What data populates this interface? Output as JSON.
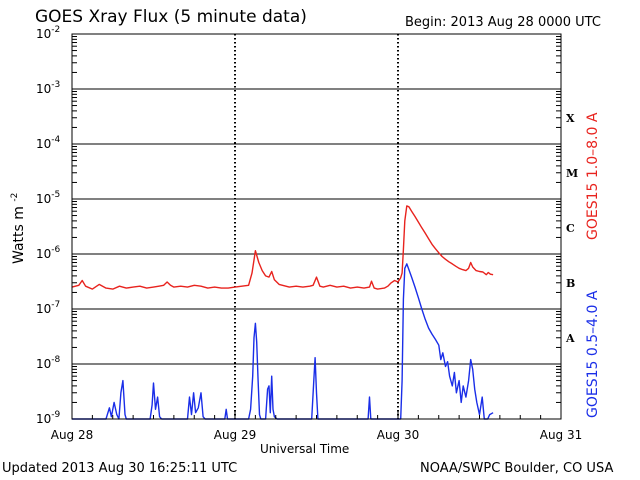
{
  "header": {
    "title": "GOES Xray Flux (5 minute data)",
    "begin": "Begin:  2013 Aug 28 0000 UTC"
  },
  "footer": {
    "updated": "Updated 2013 Aug 30 16:25:11 UTC",
    "credit": "NOAA/SWPC Boulder, CO USA"
  },
  "chart_data": {
    "type": "line",
    "title": "GOES Xray Flux (5 minute data)",
    "xlabel": "Universal Time",
    "ylabel": "Watts m",
    "ylabel_sup": "-2",
    "ylim": [
      1e-09,
      0.01
    ],
    "yscale": "log",
    "y_ticks": [
      {
        "base": "10",
        "exp": "-9",
        "value": 1e-09
      },
      {
        "base": "10",
        "exp": "-8",
        "value": 1e-08
      },
      {
        "base": "10",
        "exp": "-7",
        "value": 1e-07
      },
      {
        "base": "10",
        "exp": "-6",
        "value": 1e-06
      },
      {
        "base": "10",
        "exp": "-5",
        "value": 1e-05
      },
      {
        "base": "10",
        "exp": "-4",
        "value": 0.0001
      },
      {
        "base": "10",
        "exp": "-3",
        "value": 0.001
      },
      {
        "base": "10",
        "exp": "-2",
        "value": 0.01
      }
    ],
    "xlim": [
      0,
      72
    ],
    "x_unit": "hours since 2013 Aug 28 0000 UTC",
    "x_ticks": [
      {
        "label": "Aug 28",
        "value": 0
      },
      {
        "label": "Aug 29",
        "value": 24
      },
      {
        "label": "Aug 30",
        "value": 48
      },
      {
        "label": "Aug 31",
        "value": 72
      }
    ],
    "flare_classes": [
      {
        "label": "A",
        "value": 3e-08
      },
      {
        "label": "B",
        "value": 3e-07
      },
      {
        "label": "C",
        "value": 3e-06
      },
      {
        "label": "M",
        "value": 3e-05
      },
      {
        "label": "X",
        "value": 0.0003
      }
    ],
    "grid": true,
    "series": [
      {
        "name": "GOES15 1.0–8.0 A",
        "color": "#e8231e",
        "points": [
          [
            0,
            2.5e-07
          ],
          [
            1,
            2.7e-07
          ],
          [
            1.5,
            3.3e-07
          ],
          [
            2,
            2.6e-07
          ],
          [
            3,
            2.3e-07
          ],
          [
            4,
            2.8e-07
          ],
          [
            5,
            2.4e-07
          ],
          [
            6,
            2.3e-07
          ],
          [
            7,
            2.6e-07
          ],
          [
            8,
            2.4e-07
          ],
          [
            9,
            2.5e-07
          ],
          [
            10,
            2.6e-07
          ],
          [
            11,
            2.4e-07
          ],
          [
            12,
            2.5e-07
          ],
          [
            12.8,
            2.6e-07
          ],
          [
            13.5,
            2.7e-07
          ],
          [
            14,
            3.1e-07
          ],
          [
            14.5,
            2.7e-07
          ],
          [
            15,
            2.5e-07
          ],
          [
            16,
            2.6e-07
          ],
          [
            17,
            2.5e-07
          ],
          [
            18,
            2.7e-07
          ],
          [
            19,
            2.6e-07
          ],
          [
            20,
            2.4e-07
          ],
          [
            21,
            2.5e-07
          ],
          [
            22,
            2.4e-07
          ],
          [
            23,
            2.4e-07
          ],
          [
            24,
            2.5e-07
          ],
          [
            25,
            2.6e-07
          ],
          [
            26,
            2.7e-07
          ],
          [
            26.5,
            4.5e-07
          ],
          [
            27,
            1.15e-06
          ],
          [
            27.5,
            7e-07
          ],
          [
            28,
            5e-07
          ],
          [
            28.5,
            4e-07
          ],
          [
            29,
            3.8e-07
          ],
          [
            29.4,
            4.8e-07
          ],
          [
            29.8,
            3.4e-07
          ],
          [
            30.5,
            2.8e-07
          ],
          [
            31.5,
            2.6e-07
          ],
          [
            32,
            2.5e-07
          ],
          [
            33,
            2.6e-07
          ],
          [
            34,
            2.5e-07
          ],
          [
            35,
            2.6e-07
          ],
          [
            35.5,
            2.7e-07
          ],
          [
            36,
            3.8e-07
          ],
          [
            36.5,
            2.6e-07
          ],
          [
            37,
            2.5e-07
          ],
          [
            38,
            2.7e-07
          ],
          [
            39,
            2.5e-07
          ],
          [
            40,
            2.6e-07
          ],
          [
            41,
            2.4e-07
          ],
          [
            42,
            2.5e-07
          ],
          [
            43,
            2.4e-07
          ],
          [
            43.8,
            2.5e-07
          ],
          [
            44.1,
            3.2e-07
          ],
          [
            44.5,
            2.4e-07
          ],
          [
            45,
            2.3e-07
          ],
          [
            46,
            2.4e-07
          ],
          [
            46.5,
            2.6e-07
          ],
          [
            47,
            3e-07
          ],
          [
            47.5,
            3.3e-07
          ],
          [
            48,
            3.1e-07
          ],
          [
            48.4,
            3.7e-07
          ],
          [
            48.6,
            4.5e-07
          ],
          [
            48.8,
            1.2e-06
          ],
          [
            49,
            4e-06
          ],
          [
            49.3,
            7.5e-06
          ],
          [
            49.6,
            7.2e-06
          ],
          [
            50,
            6e-06
          ],
          [
            50.5,
            4.8e-06
          ],
          [
            51,
            3.8e-06
          ],
          [
            51.5,
            3e-06
          ],
          [
            52,
            2.4e-06
          ],
          [
            52.5,
            1.9e-06
          ],
          [
            53,
            1.5e-06
          ],
          [
            53.5,
            1.25e-06
          ],
          [
            54,
            1.05e-06
          ],
          [
            54.5,
            9e-07
          ],
          [
            55,
            8e-07
          ],
          [
            55.5,
            7.2e-07
          ],
          [
            56,
            6.6e-07
          ],
          [
            56.5,
            6e-07
          ],
          [
            57,
            5.5e-07
          ],
          [
            57.5,
            5.2e-07
          ],
          [
            58,
            5e-07
          ],
          [
            58.4,
            5.5e-07
          ],
          [
            58.7,
            7e-07
          ],
          [
            59,
            5.8e-07
          ],
          [
            59.5,
            5e-07
          ],
          [
            60,
            4.8e-07
          ],
          [
            60.5,
            4.7e-07
          ],
          [
            61,
            4.2e-07
          ],
          [
            61.3,
            4.6e-07
          ],
          [
            61.6,
            4.3e-07
          ],
          [
            62,
            4.2e-07
          ]
        ]
      },
      {
        "name": "GOES15 0.5–4.0 A",
        "color": "#1a2ee8",
        "points": [
          [
            0,
            1e-09
          ],
          [
            5,
            1e-09
          ],
          [
            5.5,
            1.6e-09
          ],
          [
            5.8,
            1.1e-09
          ],
          [
            6.2,
            2e-09
          ],
          [
            6.6,
            1.2e-09
          ],
          [
            6.9,
            1e-09
          ],
          [
            7.2,
            3e-09
          ],
          [
            7.5,
            5e-09
          ],
          [
            7.8,
            1.2e-09
          ],
          [
            8,
            1e-09
          ],
          [
            11.5,
            1e-09
          ],
          [
            11.8,
            1.8e-09
          ],
          [
            12,
            4.5e-09
          ],
          [
            12.3,
            1.5e-09
          ],
          [
            12.6,
            2.5e-09
          ],
          [
            12.9,
            1.1e-09
          ],
          [
            13.2,
            1e-09
          ],
          [
            17,
            1e-09
          ],
          [
            17.3,
            2.5e-09
          ],
          [
            17.6,
            1.2e-09
          ],
          [
            17.9,
            3e-09
          ],
          [
            18.2,
            1.3e-09
          ],
          [
            18.6,
            1.6e-09
          ],
          [
            19,
            3e-09
          ],
          [
            19.3,
            1.1e-09
          ],
          [
            19.6,
            1e-09
          ],
          [
            22.5,
            1e-09
          ],
          [
            22.7,
            1.5e-09
          ],
          [
            22.9,
            1e-09
          ],
          [
            26,
            1e-09
          ],
          [
            26.3,
            1.5e-09
          ],
          [
            26.6,
            6e-09
          ],
          [
            26.8,
            3e-08
          ],
          [
            27,
            5.5e-08
          ],
          [
            27.2,
            2.5e-08
          ],
          [
            27.4,
            5e-09
          ],
          [
            27.6,
            1.2e-09
          ],
          [
            27.8,
            1e-09
          ],
          [
            28.5,
            1e-09
          ],
          [
            28.8,
            3.5e-09
          ],
          [
            29,
            4e-09
          ],
          [
            29.2,
            1.3e-09
          ],
          [
            29.4,
            6e-09
          ],
          [
            29.6,
            1.5e-09
          ],
          [
            29.8,
            1.1e-09
          ],
          [
            30.2,
            1e-09
          ],
          [
            35.3,
            1e-09
          ],
          [
            35.6,
            5e-09
          ],
          [
            35.8,
            1.3e-08
          ],
          [
            36,
            3e-09
          ],
          [
            36.2,
            1e-09
          ],
          [
            43.6,
            1e-09
          ],
          [
            43.8,
            2.5e-09
          ],
          [
            44,
            1e-09
          ],
          [
            48,
            1e-09
          ],
          [
            48.4,
            1e-09
          ],
          [
            48.6,
            5e-09
          ],
          [
            48.8,
            1.5e-07
          ],
          [
            49,
            5.5e-07
          ],
          [
            49.3,
            6.6e-07
          ],
          [
            49.6,
            5.2e-07
          ],
          [
            50,
            3.8e-07
          ],
          [
            50.5,
            2.5e-07
          ],
          [
            51,
            1.6e-07
          ],
          [
            51.5,
            1e-07
          ],
          [
            52,
            6.5e-08
          ],
          [
            52.5,
            4.5e-08
          ],
          [
            53,
            3.5e-08
          ],
          [
            53.5,
            2.8e-08
          ],
          [
            54,
            2.2e-08
          ],
          [
            54.3,
            1.2e-08
          ],
          [
            54.6,
            1.6e-08
          ],
          [
            55,
            9e-09
          ],
          [
            55.3,
            1.1e-08
          ],
          [
            55.6,
            6e-09
          ],
          [
            56,
            4e-09
          ],
          [
            56.3,
            7e-09
          ],
          [
            56.6,
            3e-09
          ],
          [
            57,
            5e-09
          ],
          [
            57.3,
            2e-09
          ],
          [
            57.6,
            4e-09
          ],
          [
            58,
            2.5e-09
          ],
          [
            58.4,
            5e-09
          ],
          [
            58.7,
            1.2e-08
          ],
          [
            59,
            8e-09
          ],
          [
            59.3,
            3.5e-09
          ],
          [
            59.6,
            2e-09
          ],
          [
            60,
            1.2e-09
          ],
          [
            60.4,
            2.5e-09
          ],
          [
            60.7,
            1e-09
          ],
          [
            61.2,
            1e-09
          ],
          [
            61.5,
            1.2e-09
          ],
          [
            62,
            1.3e-09
          ]
        ]
      }
    ],
    "right_labels": [
      {
        "text": "GOES15 1.0–8.0 A",
        "color": "#e8231e"
      },
      {
        "text": "GOES15 0.5–4.0 A",
        "color": "#1a2ee8"
      }
    ]
  }
}
